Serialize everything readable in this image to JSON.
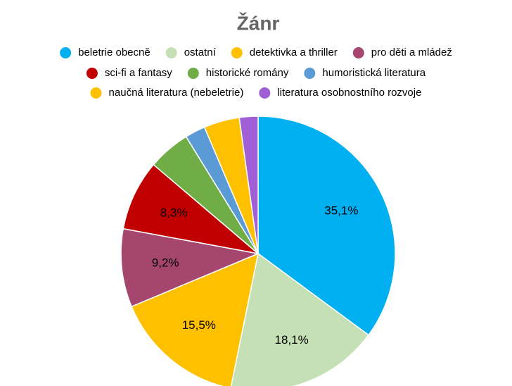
{
  "chart_data": {
    "type": "pie",
    "title": "Žánr",
    "categories": [
      "beletrie obecně",
      "ostatní",
      "detektivka a thriller",
      "pro děti a mládež",
      "sci-fi a fantasy",
      "historické romány",
      "humoristická literatura",
      "naučná literatura (nebeletrie)",
      "literatura osobnostního rozvoje"
    ],
    "values": [
      35.1,
      18.1,
      15.5,
      9.2,
      8.3,
      5.0,
      2.4,
      4.2,
      2.2
    ],
    "value_labels": [
      "35,1%",
      "18,1%",
      "15,5%",
      "9,2%",
      "8,3%",
      null,
      null,
      null,
      null
    ],
    "colors": [
      "#00b0f0",
      "#c5e0b4",
      "#ffc000",
      "#a5466f",
      "#c00000",
      "#70ad47",
      "#5b9bd5",
      "#ffc000",
      "#a05fd5"
    ],
    "legend": "top"
  }
}
